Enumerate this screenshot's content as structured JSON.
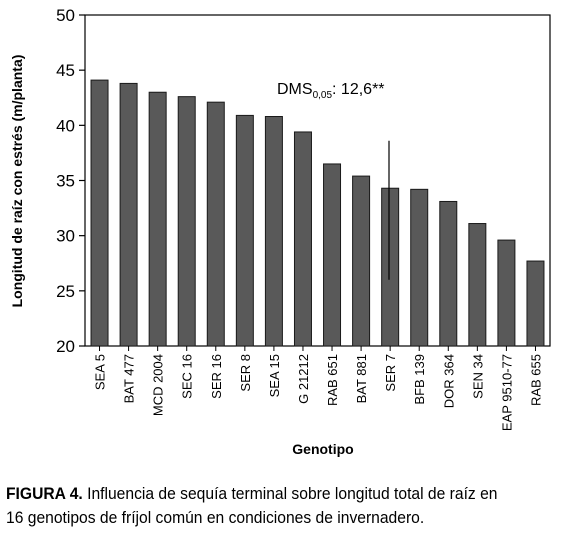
{
  "chart_data": {
    "type": "bar",
    "xlabel": "Genotipo",
    "ylabel": "Longitud de raíz con estrés (m/planta)",
    "ylim": [
      20,
      50
    ],
    "yticks": [
      20,
      25,
      30,
      35,
      40,
      45,
      50
    ],
    "grid": false,
    "categories": [
      "SEA 5",
      "BAT 477",
      "MCD 2004",
      "SEC 16",
      "SER 16",
      "SER 8",
      "SEA 15",
      "G 21212",
      "RAB 651",
      "BAT 881",
      "SER 7",
      "BFB 139",
      "DOR 364",
      "SEN 34",
      "EAP 9510-77",
      "RAB 655"
    ],
    "values": [
      44.1,
      43.8,
      43.0,
      42.6,
      42.1,
      40.9,
      40.8,
      39.4,
      36.5,
      35.4,
      34.3,
      34.2,
      33.1,
      31.1,
      29.6,
      27.7
    ],
    "bar_color": "#595959",
    "annotation": {
      "prefix": "DMS",
      "subscript": "0,05",
      "suffix": ": 12,6**",
      "bar_range": [
        26,
        38.6
      ]
    }
  },
  "caption": {
    "label": "FIGURA 4.",
    "text": "Influencia de sequía terminal sobre longitud total de raíz en 16 genotipos de fríjol común en condiciones de invernadero."
  }
}
